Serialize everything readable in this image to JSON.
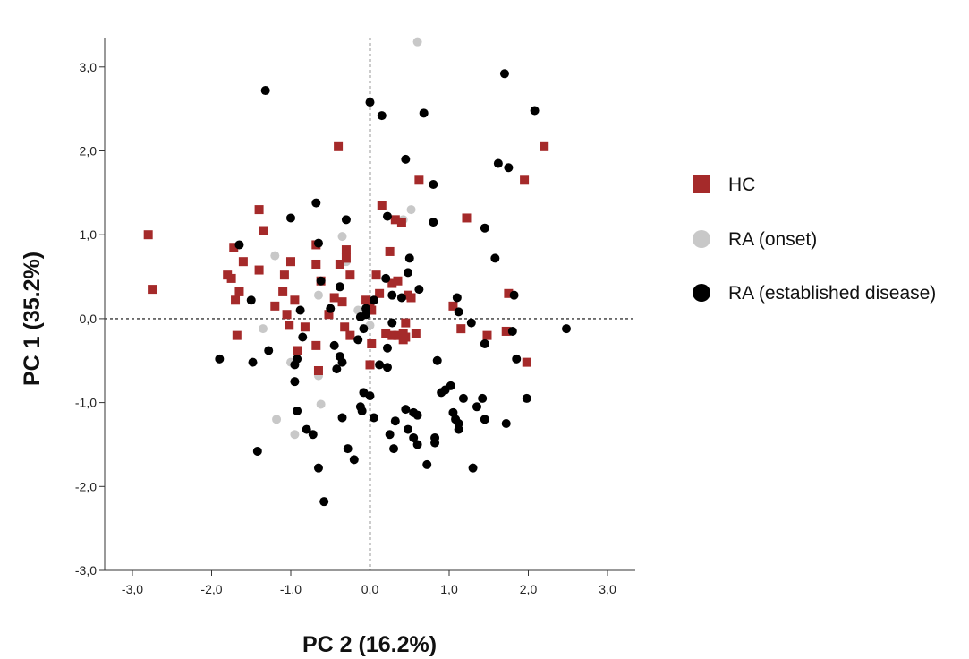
{
  "chart_data": {
    "type": "scatter",
    "xlabel": "PC 2 (16.2%)",
    "ylabel": "PC 1 (35.2%)",
    "xlim": [
      -3.35,
      3.35
    ],
    "ylim": [
      -3.0,
      3.35
    ],
    "x_ticks": [
      -3.0,
      -2.0,
      -1.0,
      0.0,
      1.0,
      2.0,
      3.0
    ],
    "y_ticks": [
      -3.0,
      -2.0,
      -1.0,
      0.0,
      1.0,
      2.0,
      3.0
    ],
    "x_tick_labels": [
      "-3,0",
      "-2,0",
      "-1,0",
      "0,0",
      "1,0",
      "2,0",
      "3,0"
    ],
    "y_tick_labels": [
      "-3,0",
      "-2,0",
      "-1,0",
      "0,0",
      "1,0",
      "2,0",
      "3,0"
    ],
    "reference_lines": {
      "x": 0,
      "y": 0,
      "style": "dotted"
    },
    "legend_position": "right",
    "series": [
      {
        "name": "HC",
        "marker": "square",
        "color": "#a52a2a",
        "points": [
          [
            -2.8,
            1.0
          ],
          [
            -2.75,
            0.35
          ],
          [
            -1.8,
            0.52
          ],
          [
            -1.72,
            0.85
          ],
          [
            -1.75,
            0.48
          ],
          [
            -1.6,
            0.68
          ],
          [
            -1.7,
            0.22
          ],
          [
            -1.65,
            0.32
          ],
          [
            -1.68,
            -0.2
          ],
          [
            -1.4,
            1.3
          ],
          [
            -1.35,
            1.05
          ],
          [
            -1.4,
            0.58
          ],
          [
            -1.2,
            0.15
          ],
          [
            -1.1,
            0.32
          ],
          [
            -1.08,
            0.52
          ],
          [
            -1.0,
            0.68
          ],
          [
            -1.05,
            0.05
          ],
          [
            -0.95,
            0.22
          ],
          [
            -1.02,
            -0.08
          ],
          [
            -0.92,
            -0.38
          ],
          [
            -0.82,
            -0.1
          ],
          [
            -0.68,
            0.88
          ],
          [
            -0.68,
            0.65
          ],
          [
            -0.62,
            0.45
          ],
          [
            -0.68,
            -0.32
          ],
          [
            -0.65,
            -0.62
          ],
          [
            -0.52,
            0.05
          ],
          [
            -0.45,
            0.25
          ],
          [
            -0.4,
            2.05
          ],
          [
            -0.38,
            0.65
          ],
          [
            -0.3,
            0.82
          ],
          [
            -0.3,
            0.72
          ],
          [
            -0.25,
            0.52
          ],
          [
            -0.35,
            0.2
          ],
          [
            -0.32,
            -0.1
          ],
          [
            -0.25,
            -0.2
          ],
          [
            -0.05,
            0.22
          ],
          [
            0.0,
            0.2
          ],
          [
            0.02,
            -0.3
          ],
          [
            0.0,
            -0.55
          ],
          [
            0.02,
            0.1
          ],
          [
            0.08,
            0.52
          ],
          [
            0.12,
            0.3
          ],
          [
            0.15,
            1.35
          ],
          [
            0.25,
            0.8
          ],
          [
            0.28,
            0.42
          ],
          [
            0.35,
            0.45
          ],
          [
            0.32,
            1.18
          ],
          [
            0.35,
            -0.2
          ],
          [
            0.45,
            -0.05
          ],
          [
            0.45,
            -0.22
          ],
          [
            0.42,
            -0.18
          ],
          [
            0.48,
            0.28
          ],
          [
            0.52,
            0.25
          ],
          [
            0.58,
            -0.18
          ],
          [
            0.62,
            1.65
          ],
          [
            1.05,
            0.15
          ],
          [
            1.15,
            -0.12
          ],
          [
            1.22,
            1.2
          ],
          [
            1.48,
            -0.2
          ],
          [
            1.72,
            -0.15
          ],
          [
            1.75,
            0.3
          ],
          [
            1.95,
            1.65
          ],
          [
            1.98,
            -0.52
          ],
          [
            2.2,
            2.05
          ],
          [
            0.28,
            -0.2
          ],
          [
            0.4,
            1.15
          ],
          [
            0.2,
            -0.18
          ],
          [
            0.42,
            -0.25
          ]
        ]
      },
      {
        "name": "RA (onset)",
        "marker": "circle",
        "color": "#c8c8c8",
        "points": [
          [
            -1.2,
            0.75
          ],
          [
            -1.35,
            -0.12
          ],
          [
            -1.18,
            -1.2
          ],
          [
            -1.0,
            -0.52
          ],
          [
            -0.95,
            -1.38
          ],
          [
            -0.65,
            0.28
          ],
          [
            -0.65,
            -0.68
          ],
          [
            -0.62,
            -1.02
          ],
          [
            -0.35,
            0.98
          ],
          [
            -0.3,
            0.68
          ],
          [
            0.42,
            1.18
          ],
          [
            0.52,
            1.3
          ],
          [
            0.0,
            -0.08
          ],
          [
            -0.15,
            0.1
          ],
          [
            0.6,
            3.3
          ]
        ]
      },
      {
        "name": "RA (established disease)",
        "marker": "circle",
        "color": "#000000",
        "points": [
          [
            -1.32,
            2.72
          ],
          [
            -1.65,
            0.88
          ],
          [
            -1.5,
            0.22
          ],
          [
            -1.28,
            -0.38
          ],
          [
            -1.48,
            -0.52
          ],
          [
            -1.9,
            -0.48
          ],
          [
            -1.42,
            -1.58
          ],
          [
            -1.0,
            1.2
          ],
          [
            -0.68,
            1.38
          ],
          [
            -0.65,
            0.9
          ],
          [
            -0.88,
            0.1
          ],
          [
            -0.85,
            -0.22
          ],
          [
            -0.92,
            -0.48
          ],
          [
            -0.95,
            -0.55
          ],
          [
            -0.95,
            -0.75
          ],
          [
            -0.92,
            -1.1
          ],
          [
            -0.8,
            -1.32
          ],
          [
            -0.72,
            -1.38
          ],
          [
            -0.65,
            -1.78
          ],
          [
            -0.58,
            -2.18
          ],
          [
            -0.62,
            0.45
          ],
          [
            -0.5,
            0.12
          ],
          [
            -0.45,
            -0.32
          ],
          [
            -0.42,
            -0.6
          ],
          [
            -0.38,
            -0.45
          ],
          [
            -0.38,
            0.38
          ],
          [
            -0.3,
            1.18
          ],
          [
            -0.35,
            -0.52
          ],
          [
            -0.35,
            -1.18
          ],
          [
            -0.28,
            -1.55
          ],
          [
            -0.2,
            -1.68
          ],
          [
            -0.12,
            -1.05
          ],
          [
            -0.1,
            -1.1
          ],
          [
            -0.08,
            -0.88
          ],
          [
            -0.05,
            0.12
          ],
          [
            -0.12,
            0.02
          ],
          [
            -0.08,
            -0.12
          ],
          [
            -0.15,
            -0.25
          ],
          [
            0.0,
            2.58
          ],
          [
            0.0,
            -0.92
          ],
          [
            0.05,
            -1.18
          ],
          [
            0.12,
            -0.55
          ],
          [
            0.15,
            2.42
          ],
          [
            0.2,
            0.48
          ],
          [
            0.22,
            1.22
          ],
          [
            0.22,
            -0.58
          ],
          [
            0.22,
            -0.35
          ],
          [
            0.28,
            -0.05
          ],
          [
            0.28,
            0.28
          ],
          [
            0.32,
            -1.22
          ],
          [
            0.3,
            -1.55
          ],
          [
            0.25,
            -1.38
          ],
          [
            0.4,
            0.25
          ],
          [
            0.45,
            1.9
          ],
          [
            0.45,
            -1.08
          ],
          [
            0.48,
            -1.32
          ],
          [
            0.55,
            -1.12
          ],
          [
            0.55,
            -1.42
          ],
          [
            0.5,
            0.72
          ],
          [
            0.48,
            0.55
          ],
          [
            0.6,
            -1.15
          ],
          [
            0.6,
            -1.5
          ],
          [
            0.62,
            0.35
          ],
          [
            0.68,
            2.45
          ],
          [
            0.72,
            -1.74
          ],
          [
            0.8,
            1.15
          ],
          [
            0.8,
            1.6
          ],
          [
            0.82,
            -1.42
          ],
          [
            0.82,
            -1.48
          ],
          [
            0.85,
            -0.5
          ],
          [
            0.9,
            -0.88
          ],
          [
            0.95,
            -0.85
          ],
          [
            1.02,
            -0.8
          ],
          [
            1.05,
            -1.12
          ],
          [
            1.08,
            -1.2
          ],
          [
            1.1,
            0.25
          ],
          [
            1.12,
            0.08
          ],
          [
            1.12,
            -1.25
          ],
          [
            1.12,
            -1.32
          ],
          [
            1.18,
            -0.95
          ],
          [
            1.28,
            -0.05
          ],
          [
            1.3,
            -1.78
          ],
          [
            1.35,
            -1.05
          ],
          [
            1.45,
            -0.3
          ],
          [
            1.45,
            -1.2
          ],
          [
            1.42,
            -0.95
          ],
          [
            1.45,
            1.08
          ],
          [
            1.58,
            0.72
          ],
          [
            1.62,
            1.85
          ],
          [
            1.7,
            2.92
          ],
          [
            1.75,
            1.8
          ],
          [
            1.72,
            -1.25
          ],
          [
            1.8,
            -0.15
          ],
          [
            1.82,
            0.28
          ],
          [
            1.85,
            -0.48
          ],
          [
            1.98,
            -0.95
          ],
          [
            2.08,
            2.48
          ],
          [
            2.48,
            -0.12
          ],
          [
            0.05,
            0.22
          ],
          [
            -0.05,
            0.05
          ]
        ]
      }
    ]
  }
}
